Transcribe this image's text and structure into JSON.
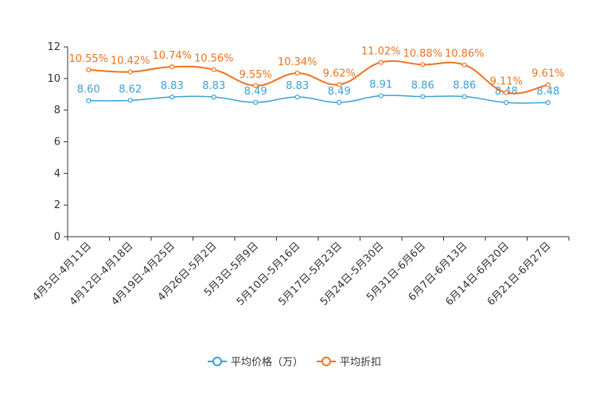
{
  "colors": {
    "price": "#3ba0d8",
    "discount": "#f0721d",
    "axis": "#333333"
  },
  "legend": {
    "price_label": "平均价格（万）",
    "discount_label": "平均折扣"
  },
  "chart_data": {
    "type": "line",
    "title": "",
    "xlabel": "",
    "ylabel": "",
    "ylim": [
      0,
      12
    ],
    "yticks": [
      "0",
      "2",
      "4",
      "6",
      "8",
      "10",
      "12"
    ],
    "grid": false,
    "legend_position": "bottom-center",
    "categories": [
      "4月5日-4月11日",
      "4月12日-4月18日",
      "4月19日-4月25日",
      "4月26日-5月2日",
      "5月3日-5月9日",
      "5月10日-5月16日",
      "5月17日-5月23日",
      "5月24日-5月30日",
      "5月31日-6月6日",
      "6月7日-6月13日",
      "6月14日-6月20日",
      "6月21日-6月27日"
    ],
    "series": [
      {
        "name": "平均价格（万）",
        "values": [
          8.6,
          8.62,
          8.83,
          8.83,
          8.49,
          8.83,
          8.49,
          8.91,
          8.86,
          8.86,
          8.48,
          8.48
        ],
        "labels": [
          "8.60",
          "8.62",
          "8.83",
          "8.83",
          "8.49",
          "8.83",
          "8.49",
          "8.91",
          "8.86",
          "8.86",
          "8.48",
          "8.48"
        ]
      },
      {
        "name": "平均折扣",
        "values": [
          10.55,
          10.42,
          10.74,
          10.56,
          9.55,
          10.34,
          9.62,
          11.02,
          10.88,
          10.86,
          9.11,
          9.61
        ],
        "labels": [
          "10.55%",
          "10.42%",
          "10.74%",
          "10.56%",
          "9.55%",
          "10.34%",
          "9.62%",
          "11.02%",
          "10.88%",
          "10.86%",
          "9.11%",
          "9.61%"
        ]
      }
    ]
  }
}
